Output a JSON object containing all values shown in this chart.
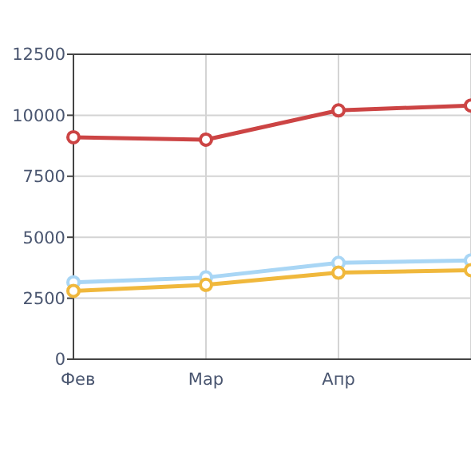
{
  "chart_data": {
    "type": "line",
    "categories": [
      "Фев",
      "Мар",
      "Апр",
      null
    ],
    "series": [
      {
        "color": "#cc4444",
        "values": [
          9100,
          9000,
          10200,
          10400
        ]
      },
      {
        "color": "#a9d6f5",
        "values": [
          3150,
          3350,
          3950,
          4050
        ]
      },
      {
        "color": "#f0b83c",
        "values": [
          2800,
          3050,
          3550,
          3650
        ]
      }
    ],
    "ylim": [
      0,
      12500
    ],
    "yticks": [
      0,
      2500,
      5000,
      7500,
      10000,
      12500
    ],
    "grid": true,
    "marker": "circle",
    "line_style": "solid"
  }
}
